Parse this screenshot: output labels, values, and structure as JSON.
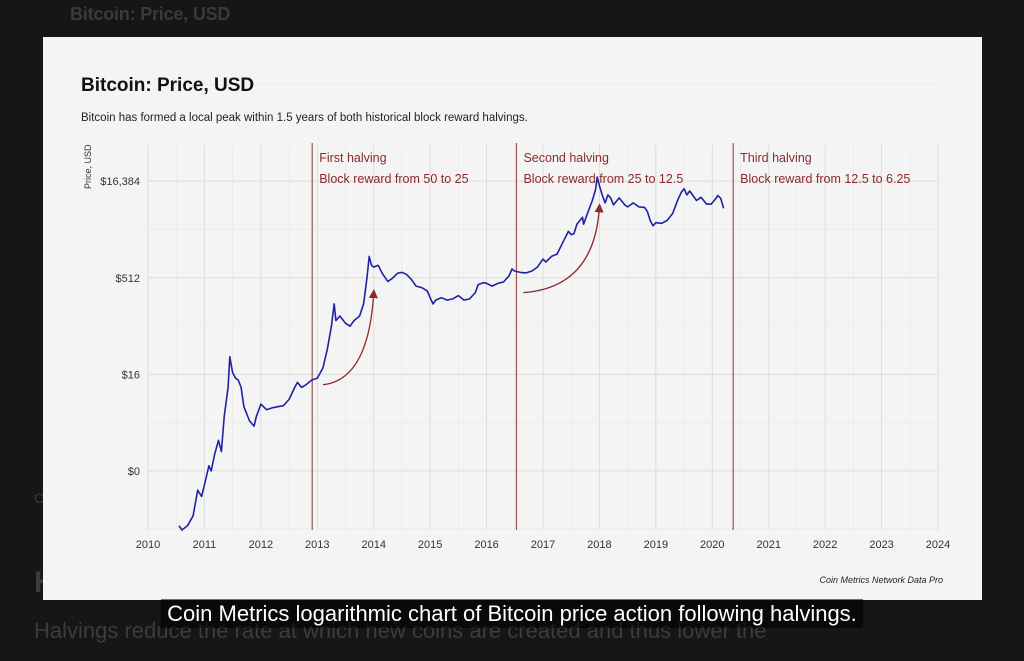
{
  "page": {
    "background_title": "Bitcoin: Price, USD",
    "caption": "Coin Metrics logarithmic chart of Bitcoin price action following halvings.",
    "background_paragraph": "Halvings reduce the rate at which new coins are created and thus lower the"
  },
  "chart_data": {
    "type": "line",
    "title": "Bitcoin: Price, USD",
    "subtitle": "Bitcoin has formed a local peak within 1.5 years of both historical block reward halvings.",
    "ylabel": "Price, USD",
    "xlabel": "",
    "source": "Coin Metrics Network Data Pro",
    "y_scale": "log2",
    "xlim": [
      2010,
      2024
    ],
    "ylim": [
      0.06,
      60000
    ],
    "x_ticks": [
      2010,
      2011,
      2012,
      2013,
      2014,
      2015,
      2016,
      2017,
      2018,
      2019,
      2020,
      2021,
      2022,
      2023,
      2024
    ],
    "y_ticks": [
      {
        "value": 0.5,
        "label": "$0"
      },
      {
        "value": 16,
        "label": "$16"
      },
      {
        "value": 512,
        "label": "$512"
      },
      {
        "value": 16384,
        "label": "$16,384"
      }
    ],
    "grid": true,
    "line_color": "#1f22a0",
    "annotation_color": "#8b2a2a",
    "halvings": [
      {
        "date": 2012.91,
        "line1": "First halving",
        "line2": "Block reward from 50 to 25"
      },
      {
        "date": 2016.53,
        "line1": "Second halving",
        "line2": "Block reward from 25 to 12.5"
      },
      {
        "date": 2020.37,
        "line1": "Third halving",
        "line2": "Block reward from 12.5 to 6.25"
      }
    ],
    "arrows": [
      {
        "from": [
          2013.1,
          11
        ],
        "to": [
          2014.0,
          300
        ]
      },
      {
        "from": [
          2016.65,
          300
        ],
        "to": [
          2018.0,
          6500
        ]
      }
    ],
    "series": [
      {
        "values": [
          [
            2010.55,
            0.07
          ],
          [
            2010.6,
            0.06
          ],
          [
            2010.7,
            0.07
          ],
          [
            2010.8,
            0.1
          ],
          [
            2010.88,
            0.25
          ],
          [
            2010.95,
            0.2
          ],
          [
            2011.0,
            0.3
          ],
          [
            2011.08,
            0.6
          ],
          [
            2011.12,
            0.5
          ],
          [
            2011.18,
            0.9
          ],
          [
            2011.25,
            1.5
          ],
          [
            2011.3,
            1.0
          ],
          [
            2011.35,
            3.5
          ],
          [
            2011.42,
            10
          ],
          [
            2011.45,
            30
          ],
          [
            2011.5,
            17
          ],
          [
            2011.55,
            14
          ],
          [
            2011.6,
            13
          ],
          [
            2011.65,
            10
          ],
          [
            2011.7,
            5
          ],
          [
            2011.8,
            3
          ],
          [
            2011.88,
            2.5
          ],
          [
            2011.92,
            3.5
          ],
          [
            2012.0,
            5.5
          ],
          [
            2012.1,
            4.5
          ],
          [
            2012.2,
            4.8
          ],
          [
            2012.3,
            5.0
          ],
          [
            2012.4,
            5.2
          ],
          [
            2012.5,
            6.5
          ],
          [
            2012.6,
            10
          ],
          [
            2012.65,
            12
          ],
          [
            2012.72,
            10
          ],
          [
            2012.8,
            11
          ],
          [
            2012.9,
            13
          ],
          [
            2013.0,
            14
          ],
          [
            2013.1,
            20
          ],
          [
            2013.18,
            40
          ],
          [
            2013.25,
            90
          ],
          [
            2013.3,
            200
          ],
          [
            2013.33,
            110
          ],
          [
            2013.4,
            130
          ],
          [
            2013.5,
            100
          ],
          [
            2013.58,
            90
          ],
          [
            2013.65,
            110
          ],
          [
            2013.75,
            130
          ],
          [
            2013.82,
            200
          ],
          [
            2013.88,
            500
          ],
          [
            2013.92,
            1100
          ],
          [
            2013.96,
            800
          ],
          [
            2014.0,
            750
          ],
          [
            2014.08,
            800
          ],
          [
            2014.15,
            600
          ],
          [
            2014.25,
            450
          ],
          [
            2014.33,
            500
          ],
          [
            2014.42,
            600
          ],
          [
            2014.5,
            620
          ],
          [
            2014.58,
            580
          ],
          [
            2014.67,
            480
          ],
          [
            2014.75,
            380
          ],
          [
            2014.85,
            360
          ],
          [
            2014.95,
            320
          ],
          [
            2015.0,
            250
          ],
          [
            2015.05,
            200
          ],
          [
            2015.1,
            230
          ],
          [
            2015.2,
            250
          ],
          [
            2015.3,
            230
          ],
          [
            2015.4,
            240
          ],
          [
            2015.5,
            270
          ],
          [
            2015.6,
            230
          ],
          [
            2015.7,
            240
          ],
          [
            2015.8,
            300
          ],
          [
            2015.85,
            400
          ],
          [
            2015.95,
            430
          ],
          [
            2016.0,
            420
          ],
          [
            2016.1,
            380
          ],
          [
            2016.2,
            420
          ],
          [
            2016.3,
            440
          ],
          [
            2016.4,
            550
          ],
          [
            2016.45,
            700
          ],
          [
            2016.5,
            650
          ],
          [
            2016.6,
            620
          ],
          [
            2016.7,
            610
          ],
          [
            2016.8,
            650
          ],
          [
            2016.9,
            750
          ],
          [
            2017.0,
            1000
          ],
          [
            2017.05,
            900
          ],
          [
            2017.15,
            1100
          ],
          [
            2017.25,
            1200
          ],
          [
            2017.35,
            1800
          ],
          [
            2017.45,
            2700
          ],
          [
            2017.5,
            2400
          ],
          [
            2017.55,
            2500
          ],
          [
            2017.6,
            3500
          ],
          [
            2017.7,
            4500
          ],
          [
            2017.72,
            3500
          ],
          [
            2017.8,
            5500
          ],
          [
            2017.87,
            8000
          ],
          [
            2017.93,
            12000
          ],
          [
            2017.96,
            19000
          ],
          [
            2018.0,
            14000
          ],
          [
            2018.05,
            10000
          ],
          [
            2018.1,
            7500
          ],
          [
            2018.15,
            10000
          ],
          [
            2018.2,
            9000
          ],
          [
            2018.25,
            7000
          ],
          [
            2018.35,
            9000
          ],
          [
            2018.45,
            7000
          ],
          [
            2018.5,
            6500
          ],
          [
            2018.6,
            7500
          ],
          [
            2018.7,
            6500
          ],
          [
            2018.8,
            6400
          ],
          [
            2018.85,
            5500
          ],
          [
            2018.9,
            4000
          ],
          [
            2018.95,
            3300
          ],
          [
            2019.0,
            3700
          ],
          [
            2019.1,
            3600
          ],
          [
            2019.2,
            4000
          ],
          [
            2019.3,
            5200
          ],
          [
            2019.38,
            8000
          ],
          [
            2019.45,
            11000
          ],
          [
            2019.5,
            12500
          ],
          [
            2019.55,
            10000
          ],
          [
            2019.6,
            11500
          ],
          [
            2019.65,
            10000
          ],
          [
            2019.72,
            8200
          ],
          [
            2019.8,
            9200
          ],
          [
            2019.9,
            7200
          ],
          [
            2019.98,
            7200
          ],
          [
            2020.05,
            8500
          ],
          [
            2020.1,
            9800
          ],
          [
            2020.15,
            8800
          ],
          [
            2020.2,
            6200
          ]
        ]
      }
    ]
  }
}
